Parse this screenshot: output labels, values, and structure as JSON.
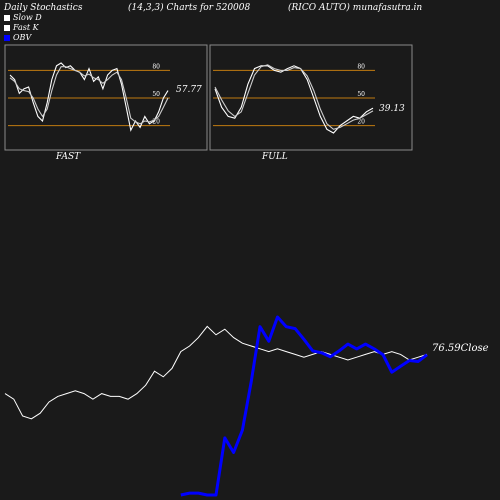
{
  "header": {
    "left": "Daily Stochastics",
    "center": "(14,3,3) Charts for 520008",
    "right": "(RICO AUTO) munafasutra.in"
  },
  "legend": [
    {
      "label": "Slow  D",
      "color": "#ffffff"
    },
    {
      "label": "Fast K",
      "color": "#ffffff"
    },
    {
      "label": "OBV",
      "color": "#0000ff"
    }
  ],
  "colors": {
    "background": "#1a1a1a",
    "level_line": "#c07a10",
    "obv": "#0000ff",
    "price": "#ffffff"
  },
  "panels": {
    "fast": {
      "label": "FAST",
      "value_label": "57.77"
    },
    "full": {
      "label": "FULL",
      "value_label": "39.13"
    }
  },
  "close_label": "76.59Close",
  "chart_data": [
    {
      "type": "line",
      "name": "fast-stochastic",
      "ylim": [
        0,
        100
      ],
      "y_ticks": [
        20,
        50,
        80
      ],
      "series": [
        {
          "name": "Fast K",
          "values": [
            75,
            70,
            55,
            60,
            62,
            45,
            30,
            25,
            45,
            70,
            85,
            88,
            83,
            85,
            80,
            78,
            70,
            82,
            68,
            73,
            60,
            75,
            80,
            82,
            65,
            40,
            15,
            25,
            18,
            30,
            22,
            25,
            35,
            50,
            58
          ]
        },
        {
          "name": "Slow  D",
          "values": [
            72,
            68,
            60,
            58,
            57,
            50,
            38,
            30,
            38,
            58,
            75,
            84,
            84,
            82,
            80,
            78,
            74,
            76,
            72,
            70,
            66,
            70,
            75,
            78,
            70,
            50,
            28,
            24,
            22,
            25,
            24,
            26,
            30,
            40,
            50
          ]
        }
      ]
    },
    {
      "type": "line",
      "name": "full-stochastic",
      "ylim": [
        0,
        100
      ],
      "y_ticks": [
        20,
        50,
        80
      ],
      "series": [
        {
          "name": "Fast K",
          "values": [
            60,
            40,
            30,
            28,
            40,
            65,
            82,
            85,
            85,
            80,
            78,
            82,
            85,
            82,
            70,
            50,
            30,
            16,
            12,
            20,
            25,
            30,
            28,
            35,
            39
          ]
        },
        {
          "name": "Slow  D",
          "values": [
            62,
            48,
            36,
            30,
            35,
            55,
            75,
            84,
            86,
            82,
            80,
            80,
            83,
            82,
            74,
            58,
            38,
            22,
            16,
            18,
            22,
            26,
            28,
            32,
            36
          ]
        }
      ]
    },
    {
      "type": "line",
      "name": "price-and-obv",
      "series": [
        {
          "name": "Close",
          "values": [
            78,
            76,
            70,
            69,
            71,
            75,
            77,
            78,
            79,
            78,
            76,
            78,
            77,
            77,
            76,
            78,
            81,
            86,
            84,
            87,
            93,
            95,
            98,
            102,
            99,
            101,
            98,
            96,
            95,
            94,
            93,
            94,
            93,
            92,
            91,
            92,
            93,
            92,
            91,
            90,
            91,
            92,
            93,
            92,
            93,
            92,
            90,
            91,
            92
          ]
        },
        {
          "name": "OBV",
          "values": [
            null,
            null,
            null,
            null,
            null,
            null,
            null,
            null,
            null,
            null,
            null,
            null,
            null,
            null,
            null,
            null,
            null,
            null,
            null,
            null,
            1,
            3,
            3,
            1,
            1,
            60,
            45,
            68,
            118,
            175,
            160,
            185,
            175,
            173,
            162,
            150,
            148,
            144,
            150,
            157,
            152,
            157,
            152,
            146,
            128,
            134,
            140,
            139,
            146
          ]
        }
      ]
    }
  ]
}
